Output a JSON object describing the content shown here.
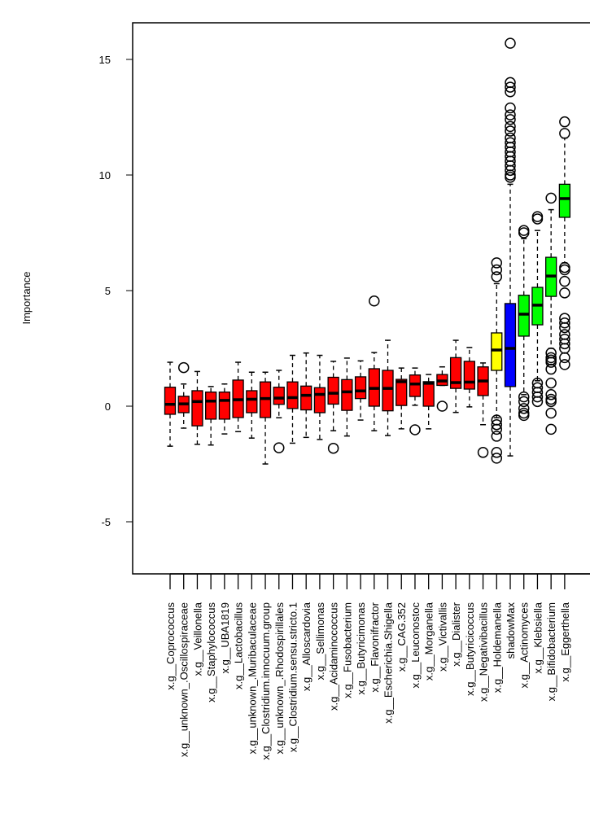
{
  "chart_data": {
    "type": "boxplot",
    "title": "",
    "xlabel": "",
    "ylabel": "Importance",
    "ylim": [
      -7.25,
      16.6
    ],
    "yticks": [
      -5,
      0,
      5,
      10,
      15
    ],
    "grid": false,
    "colors": {
      "rejected": "#ff0000",
      "tentative": "#ffff00",
      "shadow": "#0000ff",
      "confirmed": "#00ff00"
    },
    "categories": [
      {
        "label": "x.g__Coprococcus",
        "status": "rejected",
        "low": -1.73,
        "q1": -0.35,
        "median": 0.08,
        "q3": 0.82,
        "high": 1.9,
        "outliers": []
      },
      {
        "label": "x.g__unknown_.Oscillospiraceae",
        "status": "rejected",
        "low": -0.95,
        "q1": -0.28,
        "median": 0.1,
        "q3": 0.43,
        "high": 0.96,
        "outliers": [
          1.67
        ]
      },
      {
        "label": "x.g__Veillonella",
        "status": "rejected",
        "low": -1.65,
        "q1": -0.85,
        "median": 0.2,
        "q3": 0.67,
        "high": 1.5,
        "outliers": []
      },
      {
        "label": "x.g__Staphylococcus",
        "status": "rejected",
        "low": -1.68,
        "q1": -0.56,
        "median": 0.22,
        "q3": 0.61,
        "high": 0.85,
        "outliers": []
      },
      {
        "label": "x.g__UBA1819",
        "status": "rejected",
        "low": -1.2,
        "q1": -0.56,
        "median": 0.25,
        "q3": 0.61,
        "high": 0.96,
        "outliers": []
      },
      {
        "label": "x.g__Lactobacillus",
        "status": "rejected",
        "low": -1.1,
        "q1": -0.49,
        "median": 0.28,
        "q3": 1.13,
        "high": 1.9,
        "outliers": []
      },
      {
        "label": "x.g__unknown_.Muribaculaceae",
        "status": "rejected",
        "low": -1.38,
        "q1": -0.28,
        "median": 0.3,
        "q3": 0.67,
        "high": 1.47,
        "outliers": []
      },
      {
        "label": "x.g__Clostridium.innocuum.group",
        "status": "rejected",
        "low": -2.5,
        "q1": -0.49,
        "median": 0.33,
        "q3": 1.05,
        "high": 1.47,
        "outliers": []
      },
      {
        "label": "x.g__unknown_.Rhodospirillales",
        "status": "rejected",
        "low": -0.5,
        "q1": 0.08,
        "median": 0.35,
        "q3": 0.82,
        "high": 1.55,
        "outliers": [
          -1.8
        ]
      },
      {
        "label": "x.g__Clostridium.sensu.stricto.1",
        "status": "rejected",
        "low": -1.6,
        "q1": -0.1,
        "median": 0.37,
        "q3": 1.05,
        "high": 2.2,
        "outliers": []
      },
      {
        "label": "x.g__Alloscardovia",
        "status": "rejected",
        "low": -1.35,
        "q1": -0.16,
        "median": 0.47,
        "q3": 0.87,
        "high": 2.3,
        "outliers": []
      },
      {
        "label": "x.g__Sellimonas",
        "status": "rejected",
        "low": -1.44,
        "q1": -0.28,
        "median": 0.51,
        "q3": 0.8,
        "high": 2.2,
        "outliers": []
      },
      {
        "label": "x.g__Acidaminococcus",
        "status": "rejected",
        "low": -1.06,
        "q1": 0.09,
        "median": 0.56,
        "q3": 1.25,
        "high": 1.94,
        "outliers": [
          -1.82
        ]
      },
      {
        "label": "x.g__Fusobacterium",
        "status": "rejected",
        "low": -1.29,
        "q1": -0.18,
        "median": 0.62,
        "q3": 1.15,
        "high": 2.08,
        "outliers": []
      },
      {
        "label": "x.g__Butyricimonas",
        "status": "rejected",
        "low": -0.6,
        "q1": 0.33,
        "median": 0.66,
        "q3": 1.27,
        "high": 1.96,
        "outliers": []
      },
      {
        "label": "x.g__Flavonifractor",
        "status": "rejected",
        "low": -1.06,
        "q1": 0.0,
        "median": 0.77,
        "q3": 1.62,
        "high": 2.32,
        "outliers": [
          4.55
        ]
      },
      {
        "label": "x.g__Escherichia.Shigella",
        "status": "rejected",
        "low": -1.27,
        "q1": -0.2,
        "median": 0.77,
        "q3": 1.55,
        "high": 2.85,
        "outliers": []
      },
      {
        "label": "x.g__CAG.352",
        "status": "rejected",
        "low": -0.98,
        "q1": 0.03,
        "median": 1.06,
        "q3": 1.16,
        "high": 1.65,
        "outliers": []
      },
      {
        "label": "x.g__Leuconostoc",
        "status": "rejected",
        "low": 0.04,
        "q1": 0.42,
        "median": 0.96,
        "q3": 1.35,
        "high": 1.65,
        "outliers": [
          -1.02
        ]
      },
      {
        "label": "x.g__Morganella",
        "status": "rejected",
        "low": -0.98,
        "q1": 0.0,
        "median": 0.99,
        "q3": 1.06,
        "high": 1.37,
        "outliers": []
      },
      {
        "label": "x.g__Victivallis",
        "status": "rejected",
        "low": 0.9,
        "q1": 0.9,
        "median": 1.09,
        "q3": 1.37,
        "high": 1.7,
        "outliers": [
          0.0
        ]
      },
      {
        "label": "x.g__Dialister",
        "status": "rejected",
        "low": -0.27,
        "q1": 0.77,
        "median": 1.02,
        "q3": 2.1,
        "high": 2.85,
        "outliers": []
      },
      {
        "label": "x.g__Butyricicoccus",
        "status": "rejected",
        "low": -0.03,
        "q1": 0.74,
        "median": 1.04,
        "q3": 1.94,
        "high": 2.54,
        "outliers": []
      },
      {
        "label": "x.g__Negativibacillus",
        "status": "rejected",
        "low": -0.8,
        "q1": 0.46,
        "median": 1.09,
        "q3": 1.7,
        "high": 1.87,
        "outliers": [
          -2.0
        ]
      },
      {
        "label": "x.g__Holdemanella",
        "status": "tentative",
        "low": -0.5,
        "q1": 1.55,
        "median": 2.43,
        "q3": 3.17,
        "high": 5.3,
        "outliers": [
          5.6,
          5.9,
          6.2,
          -0.6,
          -0.8,
          -1.0,
          -1.3,
          -2.0,
          -2.25
        ]
      },
      {
        "label": "shadowMax",
        "status": "shadow",
        "low": -2.15,
        "q1": 0.85,
        "median": 2.5,
        "q3": 4.44,
        "high": 9.6,
        "outliers": [
          9.9,
          10.0,
          10.2,
          10.4,
          10.6,
          10.8,
          11.0,
          11.2,
          11.4,
          11.6,
          11.9,
          12.1,
          12.4,
          12.6,
          12.9,
          13.6,
          13.8,
          14.0,
          15.7
        ]
      },
      {
        "label": "x.g__Actinomyces",
        "status": "confirmed",
        "low": 0.5,
        "q1": 3.03,
        "median": 3.98,
        "q3": 4.8,
        "high": 7.25,
        "outliers": [
          7.5,
          7.6,
          0.4,
          0.2,
          -0.1,
          -0.3,
          -0.4
        ]
      },
      {
        "label": "x.g__Klebsiella",
        "status": "confirmed",
        "low": 1.1,
        "q1": 3.52,
        "median": 4.37,
        "q3": 5.14,
        "high": 7.6,
        "outliers": [
          8.1,
          8.2,
          1.0,
          0.8,
          0.6,
          0.4,
          0.2
        ]
      },
      {
        "label": "x.g__Bifidobacterium",
        "status": "confirmed",
        "low": 2.5,
        "q1": 4.75,
        "median": 5.63,
        "q3": 6.44,
        "high": 8.5,
        "outliers": [
          9.0,
          2.3,
          2.1,
          2.0,
          1.9,
          1.6,
          1.0,
          0.5,
          0.3,
          0.2,
          -0.3,
          -1.0
        ]
      },
      {
        "label": "x.g__Eggerthella",
        "status": "confirmed",
        "low": 6.2,
        "q1": 8.17,
        "median": 8.98,
        "q3": 9.6,
        "high": 11.6,
        "outliers": [
          12.3,
          11.8,
          6.0,
          5.9,
          5.4,
          4.9,
          3.8,
          3.6,
          3.4,
          3.1,
          2.9,
          2.7,
          2.5,
          2.1,
          1.8
        ]
      }
    ]
  }
}
